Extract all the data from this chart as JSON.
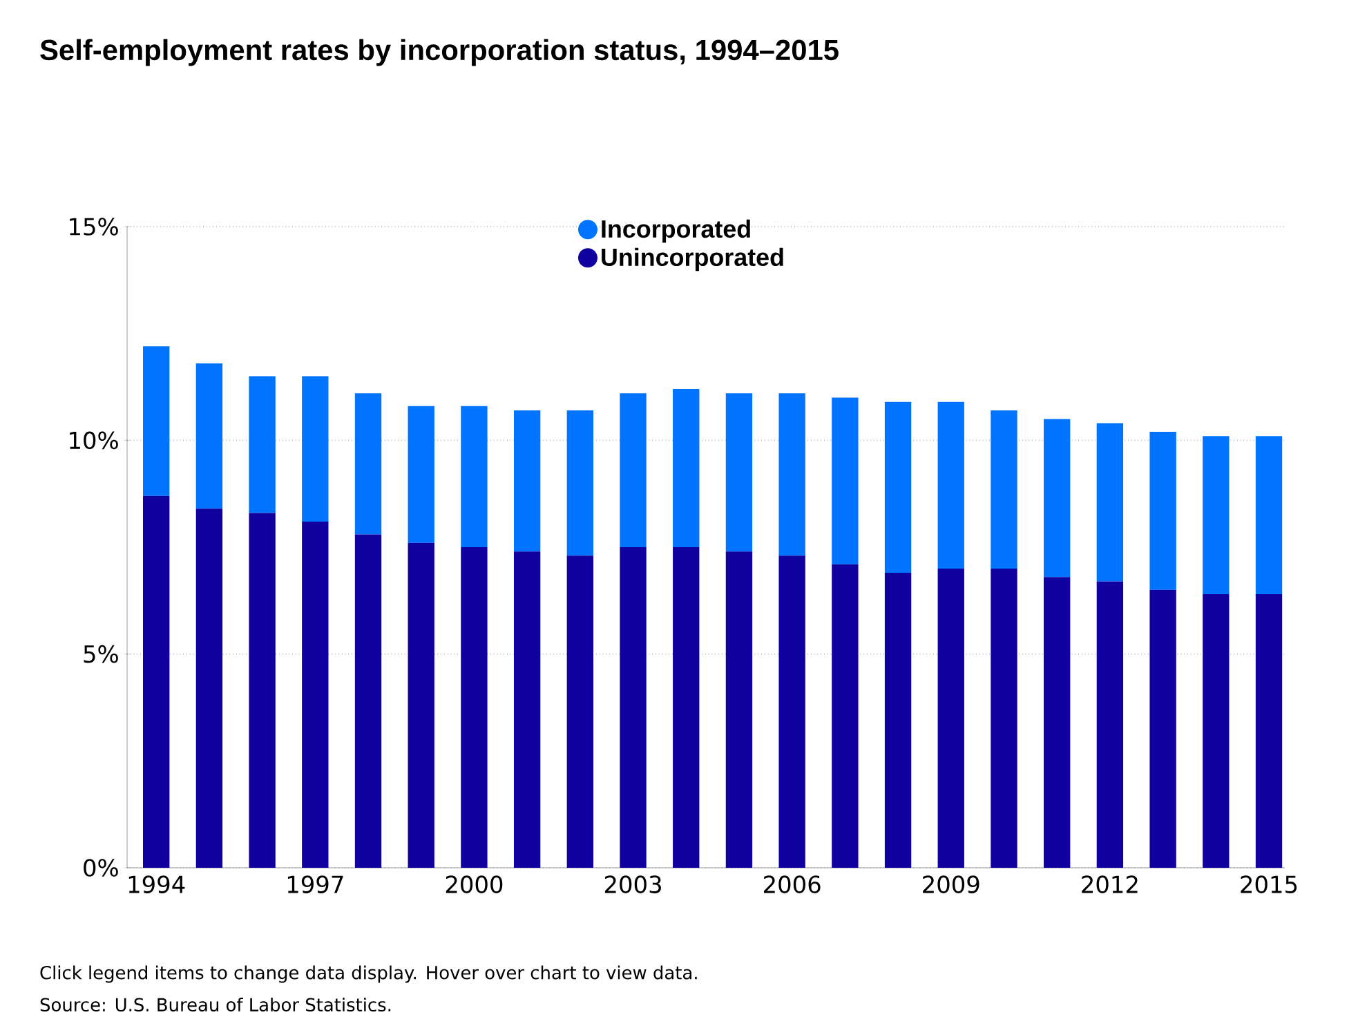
{
  "chart_data": {
    "type": "bar",
    "title": "Self-employment rates by incorporation status, 1994–2015",
    "categories": [
      "1994",
      null,
      null,
      "1997",
      null,
      null,
      "2000",
      null,
      null,
      "2003",
      null,
      null,
      "2006",
      null,
      null,
      "2009",
      null,
      null,
      "2012",
      null,
      null,
      "2015"
    ],
    "stacked": true,
    "series": [
      {
        "name": "Unincorporated",
        "color": "#1100a0",
        "values": [
          8.7,
          8.4,
          8.3,
          8.1,
          7.8,
          7.6,
          7.5,
          7.4,
          7.3,
          7.5,
          7.5,
          7.4,
          7.3,
          7.1,
          6.9,
          7.0,
          7.0,
          6.8,
          6.7,
          6.5,
          6.4,
          6.4
        ]
      },
      {
        "name": "Incorporated",
        "color": "#0073ff",
        "values": [
          3.5,
          3.4,
          3.2,
          3.4,
          3.3,
          3.2,
          3.3,
          3.3,
          3.4,
          3.6,
          3.7,
          3.7,
          3.8,
          3.9,
          4.0,
          3.9,
          3.7,
          3.7,
          3.7,
          3.7,
          3.7,
          3.7
        ]
      }
    ],
    "ylim": [
      0,
      15
    ],
    "yticks": [
      {
        "value": 0,
        "label": "0%"
      },
      {
        "value": 5,
        "label": "5%"
      },
      {
        "value": 10,
        "label": "10%"
      },
      {
        "value": 15,
        "label": "15%"
      }
    ],
    "grid": "y",
    "legend": "top",
    "annotations": [
      "Click legend items to change data display. Hover over chart to view data.",
      "Source: U.S. Bureau of Labor Statistics."
    ]
  }
}
